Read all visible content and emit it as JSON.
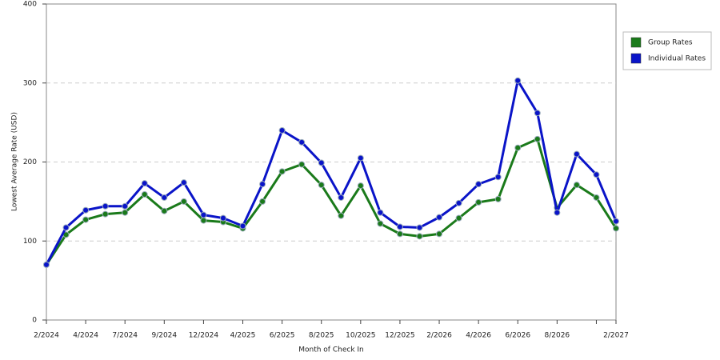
{
  "chart_data": {
    "type": "line",
    "x_label": "Month of Check In",
    "y_label": "Lowest Average Rate (USD)",
    "categories": [
      "2/2024",
      null,
      "4/2024",
      null,
      "7/2024",
      null,
      "9/2024",
      null,
      "12/2024",
      null,
      "4/2025",
      null,
      "6/2025",
      null,
      "8/2025",
      null,
      "10/2025",
      null,
      "12/2025",
      null,
      "2/2026",
      null,
      "4/2026",
      null,
      "6/2026",
      null,
      "8/2026",
      null,
      null,
      "2/2027"
    ],
    "series": [
      {
        "name": "Group Rates",
        "color": "#1a7a1a",
        "values": [
          70,
          108,
          127,
          134,
          136,
          159,
          138,
          150,
          126,
          124,
          116,
          150,
          188,
          197,
          171,
          132,
          170,
          122,
          109,
          106,
          109,
          129,
          149,
          153,
          218,
          229,
          142,
          171,
          155,
          116
        ]
      },
      {
        "name": "Individual Rates",
        "color": "#0a14c8",
        "values": [
          70,
          117,
          139,
          144,
          144,
          173,
          155,
          174,
          133,
          129,
          119,
          172,
          240,
          225,
          199,
          155,
          205,
          136,
          118,
          117,
          130,
          148,
          172,
          181,
          303,
          262,
          136,
          210,
          184,
          125
        ]
      }
    ],
    "ylim": [
      0,
      400
    ],
    "yticks": [
      0,
      100,
      200,
      300,
      400
    ],
    "grid": true
  }
}
